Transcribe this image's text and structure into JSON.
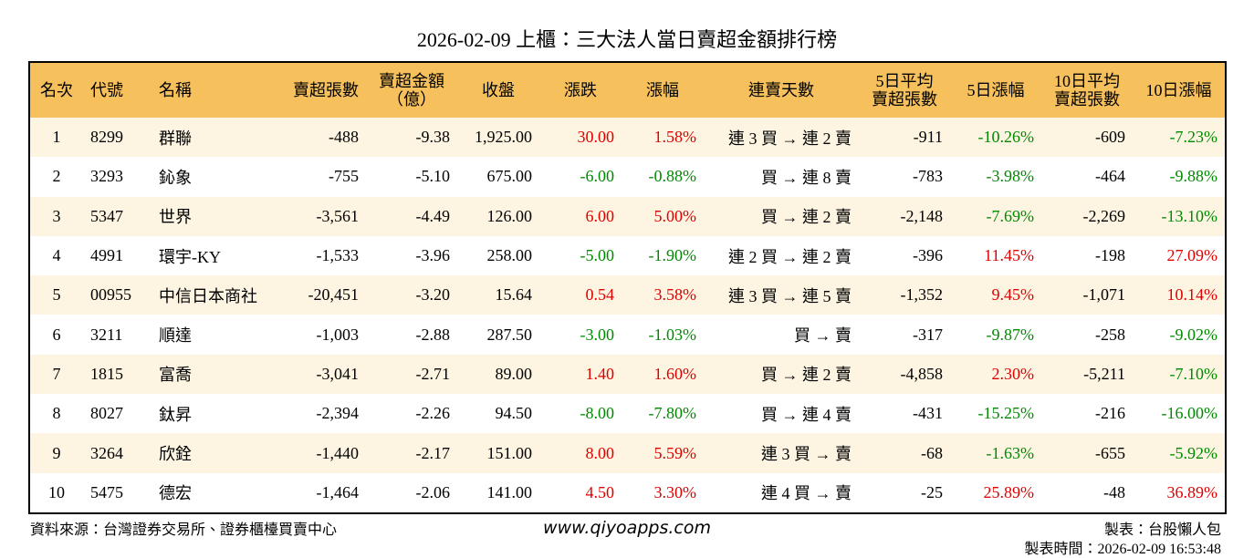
{
  "title": "2026-02-09 上櫃：三大法人當日賣超金額排行榜",
  "table": {
    "header": [
      "名次",
      "代號",
      "名稱",
      "賣超張數",
      "賣超金額\n（億）",
      "收盤",
      "漲跌",
      "漲幅",
      "連賣天數",
      "5日平均\n賣超張數",
      "5日漲幅",
      "10日平均\n賣超張數",
      "10日漲幅"
    ],
    "rows": [
      [
        "1",
        "8299",
        "群聯",
        "-488",
        "-9.38",
        "1,925.00",
        "30.00",
        "1.58%",
        "連 3 買 → 連 2 賣",
        "-911",
        "-10.26%",
        "-609",
        "-7.23%"
      ],
      [
        "2",
        "3293",
        "鈊象",
        "-755",
        "-5.10",
        "675.00",
        "-6.00",
        "-0.88%",
        "買 → 連 8 賣",
        "-783",
        "-3.98%",
        "-464",
        "-9.88%"
      ],
      [
        "3",
        "5347",
        "世界",
        "-3,561",
        "-4.49",
        "126.00",
        "6.00",
        "5.00%",
        "買 → 連 2 賣",
        "-2,148",
        "-7.69%",
        "-2,269",
        "-13.10%"
      ],
      [
        "4",
        "4991",
        "環宇-KY",
        "-1,533",
        "-3.96",
        "258.00",
        "-5.00",
        "-1.90%",
        "連 2 買 → 連 2 賣",
        "-396",
        "11.45%",
        "-198",
        "27.09%"
      ],
      [
        "5",
        "00955",
        "中信日本商社",
        "-20,451",
        "-3.20",
        "15.64",
        "0.54",
        "3.58%",
        "連 3 買 → 連 5 賣",
        "-1,352",
        "9.45%",
        "-1,071",
        "10.14%"
      ],
      [
        "6",
        "3211",
        "順達",
        "-1,003",
        "-2.88",
        "287.50",
        "-3.00",
        "-1.03%",
        "買 → 賣",
        "-317",
        "-9.87%",
        "-258",
        "-9.02%"
      ],
      [
        "7",
        "1815",
        "富喬",
        "-3,041",
        "-2.71",
        "89.00",
        "1.40",
        "1.60%",
        "買 → 連 2 賣",
        "-4,858",
        "2.30%",
        "-5,211",
        "-7.10%"
      ],
      [
        "8",
        "8027",
        "鈦昇",
        "-2,394",
        "-2.26",
        "94.50",
        "-8.00",
        "-7.80%",
        "買 → 連 4 賣",
        "-431",
        "-15.25%",
        "-216",
        "-16.00%"
      ],
      [
        "9",
        "3264",
        "欣銓",
        "-1,440",
        "-2.17",
        "151.00",
        "8.00",
        "5.59%",
        "連 3 買 → 賣",
        "-68",
        "-1.63%",
        "-655",
        "-5.92%"
      ],
      [
        "10",
        "5475",
        "德宏",
        "-1,464",
        "-2.06",
        "141.00",
        "4.50",
        "3.30%",
        "連 4 買 → 賣",
        "-25",
        "25.89%",
        "-48",
        "36.89%"
      ]
    ]
  },
  "footer": {
    "source": "資料來源：台灣證券交易所、證券櫃檯買賣中心",
    "site": "www.qiyoapps.com",
    "maker": "製表：台股懶人包",
    "time": "製表時間：2026-02-09 16:53:48"
  }
}
